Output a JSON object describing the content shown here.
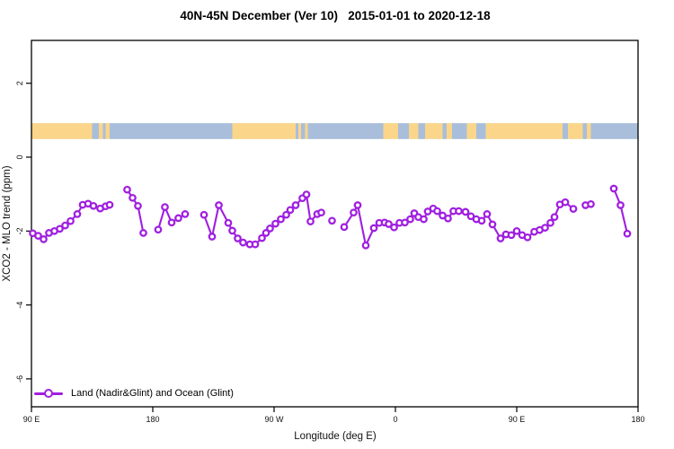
{
  "title": "40N-45N December (Ver 10)   2015-01-01 to 2020-12-18",
  "axes": {
    "x_label": "Longitude (deg E)",
    "y_label": "XCO2 - MLO trend (ppm)",
    "x_ticks": [
      {
        "pos": 0,
        "label": "90 E"
      },
      {
        "pos": 90,
        "label": "180"
      },
      {
        "pos": 180,
        "label": "90 W"
      },
      {
        "pos": 270,
        "label": "0"
      },
      {
        "pos": 360,
        "label": "90 E"
      },
      {
        "pos": 450,
        "label": "180"
      }
    ],
    "y_ticks": [
      {
        "value": 2,
        "label": "2"
      },
      {
        "value": 0,
        "label": "0"
      },
      {
        "value": -2,
        "label": "-2"
      },
      {
        "value": -4,
        "label": "-4"
      },
      {
        "value": -6,
        "label": "-6"
      }
    ],
    "x_axis_span_deg": 450,
    "y_range_ppm": [
      -6.8,
      3.2
    ]
  },
  "legend": {
    "label": "Land (Nadir&Glint) and Ocean (Glint)",
    "color": "#A01FE0"
  },
  "map_strip": {
    "y_top_value": 0.92,
    "y_bottom_value": 0.49,
    "land_color": "#FAD58A",
    "ocean_color": "#A8BEDB",
    "segments": [
      {
        "type": "land",
        "from": 0,
        "to": 45
      },
      {
        "type": "ocean",
        "from": 45,
        "to": 50
      },
      {
        "type": "land",
        "from": 50,
        "to": 53
      },
      {
        "type": "ocean",
        "from": 53,
        "to": 55
      },
      {
        "type": "land",
        "from": 55,
        "to": 58
      },
      {
        "type": "ocean",
        "from": 58,
        "to": 149
      },
      {
        "type": "land",
        "from": 149,
        "to": 196
      },
      {
        "type": "ocean",
        "from": 196,
        "to": 198
      },
      {
        "type": "land",
        "from": 198,
        "to": 200
      },
      {
        "type": "ocean",
        "from": 200,
        "to": 203
      },
      {
        "type": "land",
        "from": 203,
        "to": 205
      },
      {
        "type": "ocean",
        "from": 205,
        "to": 261
      },
      {
        "type": "land",
        "from": 261,
        "to": 272
      },
      {
        "type": "ocean",
        "from": 272,
        "to": 280
      },
      {
        "type": "land",
        "from": 280,
        "to": 287
      },
      {
        "type": "ocean",
        "from": 287,
        "to": 292
      },
      {
        "type": "land",
        "from": 292,
        "to": 305
      },
      {
        "type": "ocean",
        "from": 305,
        "to": 308
      },
      {
        "type": "land",
        "from": 308,
        "to": 312
      },
      {
        "type": "ocean",
        "from": 312,
        "to": 323
      },
      {
        "type": "land",
        "from": 323,
        "to": 330
      },
      {
        "type": "ocean",
        "from": 330,
        "to": 337
      },
      {
        "type": "land",
        "from": 337,
        "to": 394
      },
      {
        "type": "ocean",
        "from": 394,
        "to": 398
      },
      {
        "type": "land",
        "from": 398,
        "to": 409
      },
      {
        "type": "ocean",
        "from": 409,
        "to": 412
      },
      {
        "type": "land",
        "from": 412,
        "to": 415
      },
      {
        "type": "ocean",
        "from": 415,
        "to": 450
      }
    ]
  },
  "chart_data": {
    "type": "line",
    "title": "40N-45N December (Ver 10)   2015-01-01 to 2020-12-18",
    "xlabel": "Longitude (deg E)",
    "ylabel": "XCO2 - MLO trend (ppm)",
    "x_units": "degrees east of left edge (left edge = 90E, wraps eastward to 180)",
    "xlim": [
      0,
      450
    ],
    "ylim": [
      -6.8,
      3.2
    ],
    "grid": false,
    "legend_position": "bottom-left",
    "gap_break_deg": 8,
    "series": [
      {
        "name": "Land (Nadir&Glint) and Ocean (Glint)",
        "color": "#A01FE0",
        "marker": "open-circle",
        "points": [
          [
            1,
            -2.06
          ],
          [
            5,
            -2.13
          ],
          [
            9,
            -2.22
          ],
          [
            13,
            -2.05
          ],
          [
            17,
            -2.0
          ],
          [
            21,
            -1.94
          ],
          [
            25,
            -1.85
          ],
          [
            29,
            -1.73
          ],
          [
            34,
            -1.54
          ],
          [
            38,
            -1.29
          ],
          [
            42,
            -1.26
          ],
          [
            46,
            -1.32
          ],
          [
            51,
            -1.39
          ],
          [
            55,
            -1.33
          ],
          [
            58,
            -1.29
          ],
          [
            71,
            -0.88
          ],
          [
            75,
            -1.1
          ],
          [
            79,
            -1.32
          ],
          [
            83,
            -2.05
          ],
          [
            94,
            -1.96
          ],
          [
            99,
            -1.35
          ],
          [
            104,
            -1.77
          ],
          [
            109,
            -1.65
          ],
          [
            114,
            -1.54
          ],
          [
            128,
            -1.56
          ],
          [
            134,
            -2.15
          ],
          [
            139,
            -1.3
          ],
          [
            146,
            -1.78
          ],
          [
            149,
            -1.99
          ],
          [
            153,
            -2.2
          ],
          [
            157,
            -2.31
          ],
          [
            162,
            -2.36
          ],
          [
            166,
            -2.36
          ],
          [
            171,
            -2.19
          ],
          [
            174,
            -2.05
          ],
          [
            177,
            -1.93
          ],
          [
            181,
            -1.8
          ],
          [
            185,
            -1.68
          ],
          [
            189,
            -1.56
          ],
          [
            192,
            -1.43
          ],
          [
            196,
            -1.3
          ],
          [
            201,
            -1.11
          ],
          [
            204,
            -1.01
          ],
          [
            207,
            -1.74
          ],
          [
            212,
            -1.54
          ],
          [
            215,
            -1.5
          ],
          [
            223,
            -1.72
          ],
          [
            232,
            -1.89
          ],
          [
            239,
            -1.5
          ],
          [
            242,
            -1.3
          ],
          [
            248,
            -2.39
          ],
          [
            254,
            -1.92
          ],
          [
            258,
            -1.78
          ],
          [
            262,
            -1.77
          ],
          [
            265,
            -1.81
          ],
          [
            269,
            -1.9
          ],
          [
            273,
            -1.78
          ],
          [
            277,
            -1.77
          ],
          [
            281,
            -1.68
          ],
          [
            284,
            -1.52
          ],
          [
            287,
            -1.62
          ],
          [
            291,
            -1.68
          ],
          [
            294,
            -1.47
          ],
          [
            298,
            -1.39
          ],
          [
            301,
            -1.46
          ],
          [
            305,
            -1.58
          ],
          [
            309,
            -1.66
          ],
          [
            313,
            -1.46
          ],
          [
            317,
            -1.46
          ],
          [
            322,
            -1.48
          ],
          [
            326,
            -1.6
          ],
          [
            330,
            -1.68
          ],
          [
            334,
            -1.72
          ],
          [
            338,
            -1.54
          ],
          [
            342,
            -1.82
          ],
          [
            348,
            -2.2
          ],
          [
            352,
            -2.09
          ],
          [
            356,
            -2.11
          ],
          [
            360,
            -2.0
          ],
          [
            364,
            -2.11
          ],
          [
            368,
            -2.17
          ],
          [
            373,
            -2.02
          ],
          [
            377,
            -1.97
          ],
          [
            381,
            -1.91
          ],
          [
            385,
            -1.78
          ],
          [
            388,
            -1.62
          ],
          [
            392,
            -1.28
          ],
          [
            396,
            -1.22
          ],
          [
            402,
            -1.4
          ],
          [
            411,
            -1.3
          ],
          [
            415,
            -1.27
          ],
          [
            432,
            -0.85
          ],
          [
            437,
            -1.3
          ],
          [
            442,
            -2.07
          ]
        ]
      }
    ]
  }
}
